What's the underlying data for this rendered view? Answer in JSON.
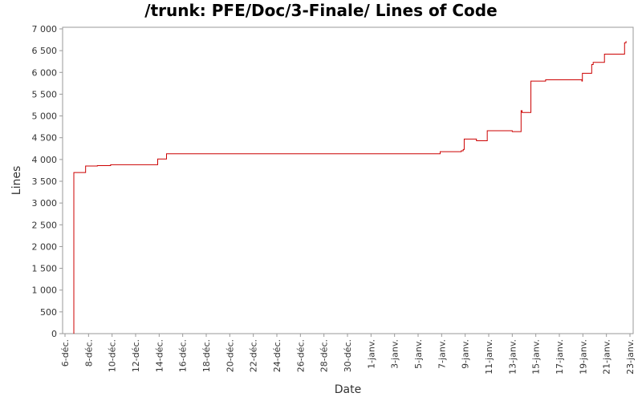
{
  "chart_data": {
    "type": "line",
    "title": "/trunk: PFE/Doc/3-Finale/ Lines of Code",
    "xlabel": "Date",
    "ylabel": "Lines",
    "ylim": [
      0,
      7000
    ],
    "xlim": [
      "2011-12-06",
      "2012-01-23"
    ],
    "grid": false,
    "line_color": "#cc0000",
    "y_ticks": [
      {
        "value": 0,
        "label": "0"
      },
      {
        "value": 500,
        "label": "500"
      },
      {
        "value": 1000,
        "label": "1 000"
      },
      {
        "value": 1500,
        "label": "1 500"
      },
      {
        "value": 2000,
        "label": "2 000"
      },
      {
        "value": 2500,
        "label": "2 500"
      },
      {
        "value": 3000,
        "label": "3 000"
      },
      {
        "value": 3500,
        "label": "3 500"
      },
      {
        "value": 4000,
        "label": "4 000"
      },
      {
        "value": 4500,
        "label": "4 500"
      },
      {
        "value": 5000,
        "label": "5 000"
      },
      {
        "value": 5500,
        "label": "5 500"
      },
      {
        "value": 6000,
        "label": "6 000"
      },
      {
        "value": 6500,
        "label": "6 500"
      },
      {
        "value": 7000,
        "label": "7 000"
      }
    ],
    "x_ticks": [
      {
        "date": "2011-12-06",
        "label": "6-déc."
      },
      {
        "date": "2011-12-08",
        "label": "8-déc."
      },
      {
        "date": "2011-12-10",
        "label": "10-déc."
      },
      {
        "date": "2011-12-12",
        "label": "12-déc."
      },
      {
        "date": "2011-12-14",
        "label": "14-déc."
      },
      {
        "date": "2011-12-16",
        "label": "16-déc."
      },
      {
        "date": "2011-12-18",
        "label": "18-déc."
      },
      {
        "date": "2011-12-20",
        "label": "20-déc."
      },
      {
        "date": "2011-12-22",
        "label": "22-déc."
      },
      {
        "date": "2011-12-24",
        "label": "24-déc."
      },
      {
        "date": "2011-12-26",
        "label": "26-déc."
      },
      {
        "date": "2011-12-28",
        "label": "28-déc."
      },
      {
        "date": "2011-12-30",
        "label": "30-déc."
      },
      {
        "date": "2012-01-01",
        "label": "1-janv."
      },
      {
        "date": "2012-01-03",
        "label": "3-janv."
      },
      {
        "date": "2012-01-05",
        "label": "5-janv."
      },
      {
        "date": "2012-01-07",
        "label": "7-janv."
      },
      {
        "date": "2012-01-09",
        "label": "9-janv."
      },
      {
        "date": "2012-01-11",
        "label": "11-janv."
      },
      {
        "date": "2012-01-13",
        "label": "13-janv."
      },
      {
        "date": "2012-01-15",
        "label": "15-janv."
      },
      {
        "date": "2012-01-17",
        "label": "17-janv."
      },
      {
        "date": "2012-01-19",
        "label": "19-janv."
      },
      {
        "date": "2012-01-21",
        "label": "21-janv."
      },
      {
        "date": "2012-01-23",
        "label": "23-janv."
      }
    ],
    "series": [
      {
        "step": true,
        "points": [
          {
            "x": "2011-12-06 18:00",
            "y": 0
          },
          {
            "x": "2011-12-06 18:00",
            "y": 3700
          },
          {
            "x": "2011-12-07 18:00",
            "y": 3850
          },
          {
            "x": "2011-12-08 18:00",
            "y": 3860
          },
          {
            "x": "2011-12-09 21:00",
            "y": 3880
          },
          {
            "x": "2011-12-13 21:00",
            "y": 4010
          },
          {
            "x": "2011-12-14 15:00",
            "y": 4130
          },
          {
            "x": "2012-01-06 21:00",
            "y": 4180
          },
          {
            "x": "2012-01-08 16:00",
            "y": 4200
          },
          {
            "x": "2012-01-08 20:00",
            "y": 4230
          },
          {
            "x": "2012-01-08 22:00",
            "y": 4470
          },
          {
            "x": "2012-01-09 23:00",
            "y": 4430
          },
          {
            "x": "2012-01-10 21:00",
            "y": 4660
          },
          {
            "x": "2012-01-13 00:00",
            "y": 4640
          },
          {
            "x": "2012-01-13 18:00",
            "y": 5120
          },
          {
            "x": "2012-01-13 20:00",
            "y": 5080
          },
          {
            "x": "2012-01-14 14:00",
            "y": 5800
          },
          {
            "x": "2012-01-15 20:00",
            "y": 5830
          },
          {
            "x": "2012-01-18 22:00",
            "y": 5800
          },
          {
            "x": "2012-01-18 23:00",
            "y": 5980
          },
          {
            "x": "2012-01-19 18:00",
            "y": 6180
          },
          {
            "x": "2012-01-19 21:00",
            "y": 6230
          },
          {
            "x": "2012-01-20 20:00",
            "y": 6420
          },
          {
            "x": "2012-01-22 13:00",
            "y": 6680
          },
          {
            "x": "2012-01-22 16:00",
            "y": 6720
          }
        ]
      }
    ]
  }
}
